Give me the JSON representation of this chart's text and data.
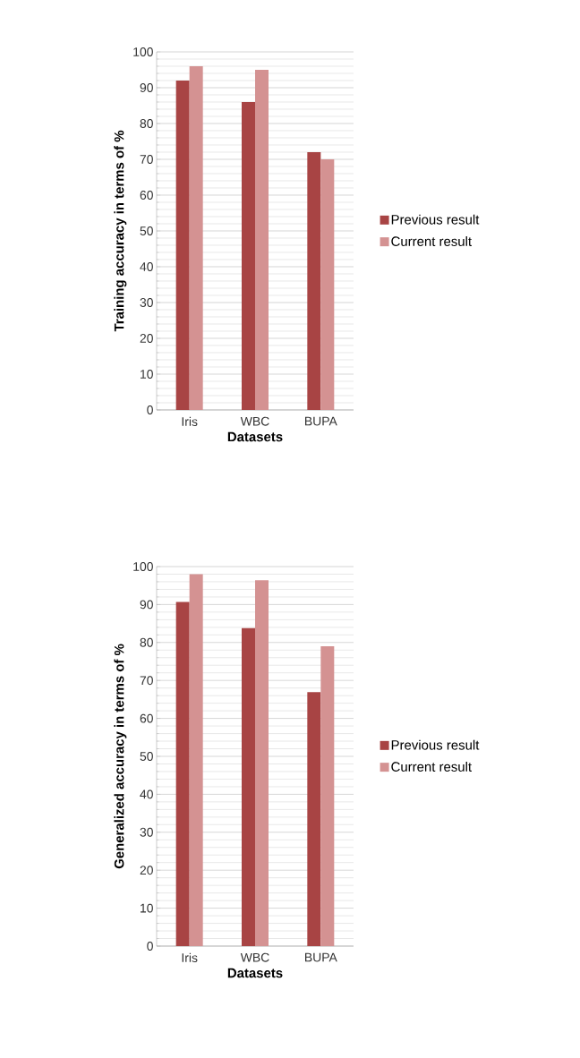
{
  "chart_data": [
    {
      "type": "bar",
      "ylabel": "Training accuracy in terms of %",
      "xlabel": "Datasets",
      "categories": [
        "Iris",
        "WBC",
        "BUPA"
      ],
      "series": [
        {
          "name": "Previous result",
          "color": "#a84444",
          "values": [
            92,
            86,
            72
          ]
        },
        {
          "name": "Current result",
          "color": "#d49292",
          "values": [
            96,
            95,
            70
          ]
        }
      ],
      "ylim": [
        0,
        100
      ],
      "yticks": [
        0,
        10,
        20,
        30,
        40,
        50,
        60,
        70,
        80,
        90,
        100
      ],
      "grid": "y",
      "legend": "right"
    },
    {
      "type": "bar",
      "ylabel": "Generalized accuracy in terms of %",
      "xlabel": "Datasets",
      "categories": [
        "Iris",
        "WBC",
        "BUPA"
      ],
      "series": [
        {
          "name": "Previous result",
          "color": "#a84444",
          "values": [
            90.7,
            83.8,
            66.9
          ]
        },
        {
          "name": "Current result",
          "color": "#d49292",
          "values": [
            98,
            96.4,
            79
          ]
        }
      ],
      "ylim": [
        0,
        100
      ],
      "yticks": [
        0,
        10,
        20,
        30,
        40,
        50,
        60,
        70,
        80,
        90,
        100
      ],
      "grid": "y",
      "legend": "right"
    }
  ]
}
